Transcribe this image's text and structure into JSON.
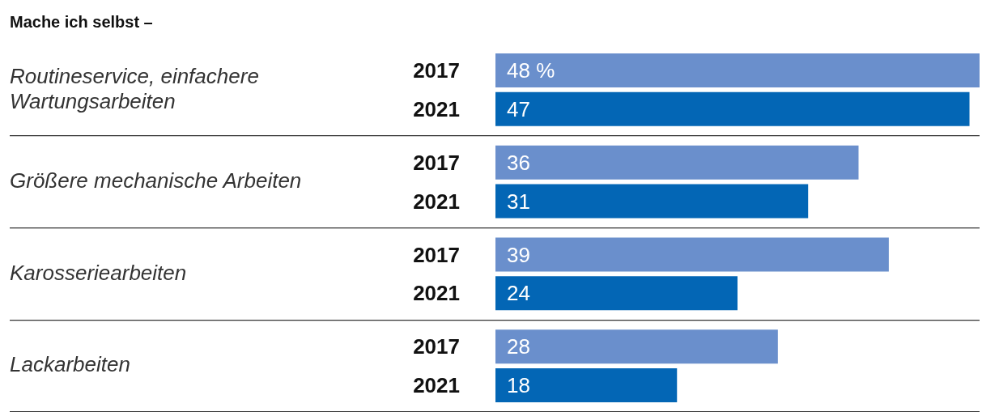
{
  "chart_data": {
    "type": "bar",
    "orientation": "horizontal",
    "title": "Mache ich selbst –",
    "categories": [
      "Routineservice, einfachere Wartungsarbeiten",
      "Größere mechanische Arbeiten",
      "Karosseriearbeiten",
      "Lackarbeiten"
    ],
    "series": [
      {
        "name": "2017",
        "color": "#6a8fcc",
        "values": [
          48,
          36,
          39,
          28
        ],
        "value_labels": [
          "48 %",
          "36",
          "39",
          "28"
        ]
      },
      {
        "name": "2021",
        "color": "#0366b5",
        "values": [
          47,
          31,
          24,
          18
        ],
        "value_labels": [
          "47",
          "31",
          "24",
          "18"
        ]
      }
    ],
    "xlim": [
      0,
      48
    ],
    "tick_labels": "y",
    "grid": "y",
    "legend": false
  }
}
